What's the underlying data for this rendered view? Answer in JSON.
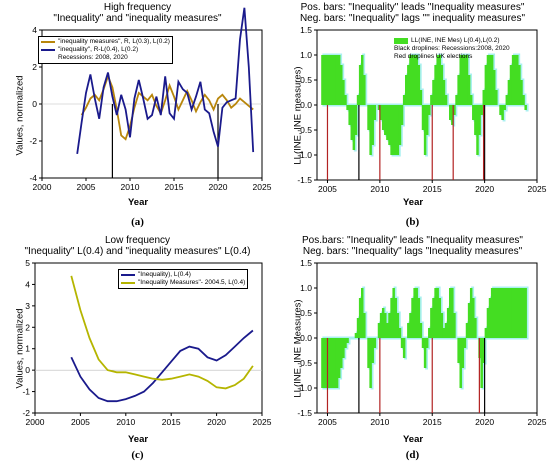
{
  "chart_data": [
    {
      "id": "a",
      "type": "line",
      "caption": "(a)",
      "title": [
        "High frequency",
        "\"Inequality\" and \"inequality measures\""
      ],
      "xlabel": "Year",
      "ylabel": "Values, normalized",
      "xlim": [
        2000,
        2025
      ],
      "ylim": [
        -4,
        4
      ],
      "xticks": [
        2000,
        2005,
        2010,
        2015,
        2020,
        2025
      ],
      "yticks": [
        -4,
        -2,
        0,
        2,
        4
      ],
      "legend_position": "top-left",
      "legend_note": "Recessions: 2008, 2020",
      "droplines": [
        2008,
        2020
      ],
      "droplines_color": "#000000",
      "series": [
        {
          "name": "\"inequality measures\", R, L(0.3), L(0.2)",
          "color": "#b8860b",
          "x": [
            2004.5,
            2005,
            2005.5,
            2006,
            2006.5,
            2007,
            2007.5,
            2008,
            2008.5,
            2009,
            2009.5,
            2010,
            2010.5,
            2011,
            2011.5,
            2012,
            2012.5,
            2013,
            2013.5,
            2014,
            2014.5,
            2015,
            2015.5,
            2016,
            2016.5,
            2017,
            2017.5,
            2018,
            2018.5,
            2019,
            2019.5,
            2020,
            2020.5,
            2021,
            2021.5,
            2022,
            2022.5,
            2023,
            2023.5,
            2024
          ],
          "y": [
            -0.6,
            -0.2,
            0.3,
            0.5,
            0.2,
            0.8,
            1.5,
            0.9,
            -0.3,
            -1.7,
            -1.9,
            -1.2,
            -0.2,
            0.6,
            0.4,
            0.2,
            0.5,
            -0.1,
            -0.5,
            0.2,
            1.0,
            0.4,
            -0.3,
            0.2,
            0.7,
            0.2,
            -0.4,
            0.1,
            0.5,
            0.2,
            -0.3,
            0.3,
            0.5,
            0.2,
            -0.2,
            0.0,
            0.3,
            0.1,
            -0.1,
            -0.3
          ]
        },
        {
          "name": "\"inequality\", R-L(0.4), L(0.2)",
          "color": "#1a1a8c",
          "x": [
            2004,
            2004.5,
            2005,
            2005.5,
            2006,
            2006.5,
            2007,
            2007.5,
            2008,
            2008.5,
            2009,
            2009.5,
            2010,
            2010.5,
            2011,
            2011.5,
            2012,
            2012.5,
            2013,
            2013.5,
            2014,
            2014.5,
            2015,
            2015.5,
            2016,
            2016.5,
            2017,
            2017.5,
            2018,
            2018.5,
            2019,
            2019.5,
            2020,
            2020.5,
            2021,
            2021.5,
            2022,
            2022.5,
            2023,
            2023.5,
            2024
          ],
          "y": [
            -2.7,
            -1.0,
            0.6,
            1.6,
            0.3,
            -0.8,
            0.9,
            1.7,
            0.4,
            -0.6,
            0.5,
            -0.3,
            -1.8,
            0.3,
            1.3,
            0.3,
            -0.8,
            -0.6,
            0.4,
            -0.6,
            1.5,
            -0.5,
            -0.8,
            1.2,
            0.8,
            0.6,
            -0.3,
            0.4,
            1.2,
            -0.3,
            -0.5,
            -1.5,
            -2.3,
            -0.2,
            0.1,
            0.2,
            0.3,
            3.5,
            5.2,
            2.0,
            -2.6
          ]
        }
      ]
    },
    {
      "id": "b",
      "type": "bar",
      "caption": "(b)",
      "title": [
        "Pos. bars: \"Inequality\" leads \"Inequality measures\"",
        "Neg. bars: \"Inequality\" lags \"\" inequality measures\""
      ],
      "xlabel": "Year",
      "ylabel": "LL(INE, INE measures)",
      "xlim": [
        2004,
        2025
      ],
      "ylim": [
        -1.5,
        1.5
      ],
      "xticks": [
        2005,
        2010,
        2015,
        2020,
        2025
      ],
      "yticks": [
        -1.5,
        -1.0,
        -0.5,
        0.0,
        0.5,
        1.0,
        1.5
      ],
      "legend_position": "top-right",
      "legend_entries": [
        "LL(INE, INE Mes) L(0.4),L(0.2)",
        "Black droplines: Recessions:2008, 2020",
        "Red droplines UK elections"
      ],
      "bar_color": "#44dd22",
      "shadow_color": "#aaf0f0",
      "x": [
        2004.5,
        2004.7,
        2004.9,
        2005.1,
        2005.3,
        2005.5,
        2005.7,
        2005.9,
        2006.1,
        2006.3,
        2006.5,
        2006.7,
        2006.9,
        2007.1,
        2007.3,
        2007.5,
        2007.7,
        2007.9,
        2008.1,
        2008.3,
        2008.5,
        2008.7,
        2008.9,
        2009.1,
        2009.3,
        2009.5,
        2009.7,
        2009.9,
        2010.1,
        2010.3,
        2010.5,
        2010.7,
        2010.9,
        2011.1,
        2011.3,
        2011.5,
        2011.7,
        2011.9,
        2012.1,
        2012.3,
        2012.5,
        2012.7,
        2012.9,
        2013.1,
        2013.3,
        2013.5,
        2013.7,
        2013.9,
        2014.1,
        2014.3,
        2014.5,
        2014.7,
        2014.9,
        2015.1,
        2015.3,
        2015.5,
        2015.7,
        2015.9,
        2016.1,
        2016.3,
        2016.5,
        2016.7,
        2016.9,
        2017.1,
        2017.3,
        2017.5,
        2017.7,
        2017.9,
        2018.1,
        2018.3,
        2018.5,
        2018.7,
        2018.9,
        2019.1,
        2019.3,
        2019.5,
        2019.7,
        2019.9,
        2020.1,
        2020.3,
        2020.5,
        2020.7,
        2020.9,
        2021.1,
        2021.3,
        2021.5,
        2021.7,
        2021.9,
        2022.1,
        2022.3,
        2022.5,
        2022.7,
        2022.9,
        2023.1,
        2023.3,
        2023.5,
        2023.7,
        2023.9
      ],
      "values": [
        1.0,
        1.0,
        1.0,
        1.0,
        1.0,
        1.0,
        1.0,
        1.0,
        1.0,
        0.8,
        0.5,
        0.2,
        -0.1,
        -0.4,
        -0.7,
        -0.9,
        -0.6,
        0.2,
        0.8,
        1.0,
        0.6,
        0.0,
        -0.5,
        -1.0,
        -0.8,
        -0.3,
        0.0,
        -0.1,
        -0.3,
        -0.5,
        -0.6,
        -0.7,
        -0.8,
        -1.0,
        -1.0,
        -1.0,
        -1.0,
        -0.8,
        -0.4,
        0.2,
        0.6,
        0.8,
        1.0,
        1.0,
        1.0,
        1.0,
        0.8,
        0.3,
        -0.5,
        -1.0,
        -0.6,
        -0.2,
        0.2,
        0.5,
        0.8,
        1.0,
        1.0,
        0.8,
        0.5,
        0.2,
        0.0,
        -0.3,
        -0.4,
        -0.2,
        0.2,
        0.6,
        1.0,
        1.0,
        1.0,
        1.0,
        0.6,
        0.2,
        -0.3,
        -0.6,
        -1.0,
        -0.6,
        -0.2,
        0.3,
        0.8,
        1.0,
        1.0,
        1.0,
        0.7,
        0.3,
        0.0,
        -0.2,
        -0.3,
        -0.1,
        0.2,
        0.5,
        0.8,
        1.0,
        1.0,
        1.0,
        0.8,
        0.5,
        0.2,
        -0.1
      ],
      "droplines_black": [
        2008,
        2020
      ],
      "droplines_red": [
        2005,
        2010,
        2015,
        2017,
        2019.9
      ]
    },
    {
      "id": "c",
      "type": "line",
      "caption": "(c)",
      "title": [
        "Low frequency",
        "\"Inequality\" L(0.4) and \"inequality measures\" L(0.4)"
      ],
      "xlabel": "Year",
      "ylabel": "Values, normalized",
      "xlim": [
        2000,
        2025
      ],
      "ylim": [
        -2,
        5
      ],
      "xticks": [
        2000,
        2005,
        2010,
        2015,
        2020,
        2025
      ],
      "yticks": [
        -2,
        -1,
        0,
        1,
        2,
        3,
        4,
        5
      ],
      "legend_position": "top-right",
      "series": [
        {
          "name": "\"Inequality), L(0.4)",
          "color": "#1a1a8c",
          "x": [
            2004,
            2005,
            2006,
            2007,
            2008,
            2009,
            2010,
            2011,
            2012,
            2013,
            2014,
            2015,
            2016,
            2017,
            2018,
            2019,
            2020,
            2021,
            2022,
            2023,
            2024
          ],
          "y": [
            0.6,
            -0.3,
            -0.9,
            -1.3,
            -1.45,
            -1.45,
            -1.35,
            -1.2,
            -1.0,
            -0.6,
            -0.1,
            0.4,
            0.9,
            1.1,
            1.0,
            0.6,
            0.45,
            0.7,
            1.1,
            1.5,
            1.85
          ]
        },
        {
          "name": "\"Inequality Measures\"- 2004.5, L(0.4)",
          "color": "#b5b500",
          "x": [
            2004,
            2005,
            2006,
            2007,
            2008,
            2009,
            2010,
            2011,
            2012,
            2013,
            2014,
            2015,
            2016,
            2017,
            2018,
            2019,
            2020,
            2021,
            2022,
            2023,
            2024
          ],
          "y": [
            4.4,
            2.8,
            1.5,
            0.5,
            0.0,
            -0.1,
            -0.1,
            -0.2,
            -0.3,
            -0.4,
            -0.45,
            -0.4,
            -0.3,
            -0.2,
            -0.3,
            -0.5,
            -0.8,
            -0.85,
            -0.7,
            -0.4,
            0.2
          ]
        }
      ]
    },
    {
      "id": "d",
      "type": "bar",
      "caption": "(d)",
      "title": [
        "Pos.bars: \"Inequality\" leads \"Inequality measures\"",
        "Neg. bars: \"Inequality\" lags \"Inequality measures\""
      ],
      "xlabel": "Year",
      "ylabel": "LL(INE, INE Measures)",
      "xlim": [
        2004,
        2025
      ],
      "ylim": [
        -1.5,
        1.5
      ],
      "xticks": [
        2005,
        2010,
        2015,
        2020,
        2025
      ],
      "yticks": [
        -1.5,
        -1.0,
        -0.5,
        0.0,
        0.5,
        1.0,
        1.5
      ],
      "bar_color": "#44dd22",
      "shadow_color": "#aaf0f0",
      "x": [
        2004.5,
        2004.7,
        2004.9,
        2005.1,
        2005.3,
        2005.5,
        2005.7,
        2005.9,
        2006.1,
        2006.3,
        2006.5,
        2006.7,
        2006.9,
        2007.1,
        2007.3,
        2007.5,
        2007.7,
        2007.9,
        2008.1,
        2008.3,
        2008.5,
        2008.7,
        2008.9,
        2009.1,
        2009.3,
        2009.5,
        2009.7,
        2009.9,
        2010.1,
        2010.3,
        2010.5,
        2010.7,
        2010.9,
        2011.1,
        2011.3,
        2011.5,
        2011.7,
        2011.9,
        2012.1,
        2012.3,
        2012.5,
        2012.7,
        2012.9,
        2013.1,
        2013.3,
        2013.5,
        2013.7,
        2013.9,
        2014.1,
        2014.3,
        2014.5,
        2014.7,
        2014.9,
        2015.1,
        2015.3,
        2015.5,
        2015.7,
        2015.9,
        2016.1,
        2016.3,
        2016.5,
        2016.7,
        2016.9,
        2017.1,
        2017.3,
        2017.5,
        2017.7,
        2017.9,
        2018.1,
        2018.3,
        2018.5,
        2018.7,
        2018.9,
        2019.1,
        2019.3,
        2019.5,
        2019.7,
        2019.9,
        2020.1,
        2020.3,
        2020.5,
        2020.7,
        2020.9,
        2021.1,
        2021.3,
        2021.5,
        2021.7,
        2021.9,
        2022.1,
        2022.3,
        2022.5,
        2022.7,
        2022.9,
        2023.1,
        2023.3,
        2023.5,
        2023.7,
        2023.9
      ],
      "values": [
        -1.0,
        -1.0,
        -1.0,
        -1.0,
        -1.0,
        -1.0,
        -1.0,
        -1.0,
        -0.8,
        -0.6,
        -0.4,
        -0.2,
        -0.1,
        0.0,
        0.0,
        0.0,
        0.1,
        0.4,
        0.8,
        1.0,
        0.5,
        0.0,
        -0.6,
        -1.0,
        -0.5,
        -0.2,
        0.0,
        0.3,
        0.5,
        0.6,
        0.5,
        0.3,
        0.5,
        0.8,
        1.0,
        0.8,
        0.5,
        0.2,
        -0.2,
        -0.4,
        0.0,
        0.3,
        0.5,
        0.8,
        1.0,
        1.0,
        0.8,
        0.3,
        -0.2,
        -0.6,
        -0.2,
        0.2,
        0.6,
        0.8,
        1.0,
        1.0,
        0.8,
        0.5,
        0.2,
        0.3,
        0.6,
        1.0,
        1.0,
        0.5,
        0.0,
        -0.5,
        -1.0,
        -0.6,
        -0.2,
        0.3,
        0.7,
        1.0,
        0.8,
        0.4,
        0.0,
        -0.4,
        -1.0,
        -0.5,
        0.2,
        0.6,
        0.8,
        1.0,
        1.0,
        1.0,
        1.0,
        1.0,
        1.0,
        1.0,
        1.0,
        1.0,
        1.0,
        1.0,
        1.0,
        1.0,
        1.0,
        1.0,
        1.0,
        1.0
      ],
      "droplines_black": [
        2008,
        2020
      ],
      "droplines_red": [
        2005,
        2010,
        2015,
        2019.5
      ]
    }
  ]
}
